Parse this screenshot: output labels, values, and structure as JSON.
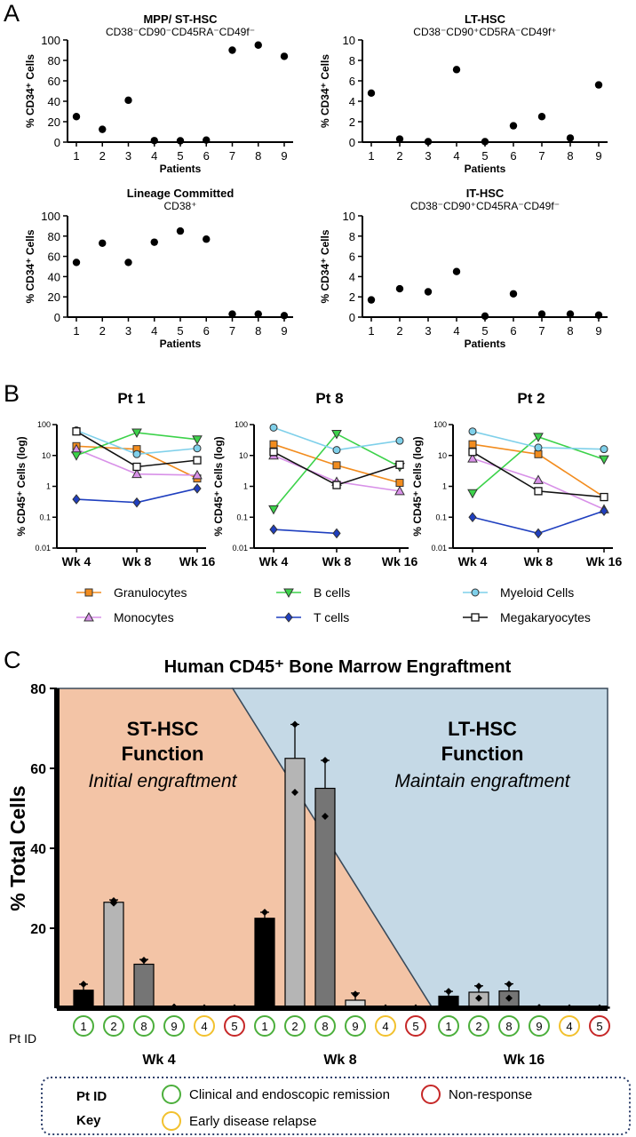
{
  "panel_letters": [
    "A",
    "B",
    "C"
  ],
  "chart_data": [
    {
      "type": "scatter",
      "panel": "A",
      "title": "MPP/ ST-HSC",
      "subtitle": "CD38⁻CD90⁻CD45RA⁻CD49f⁻",
      "xlabel": "Patients",
      "ylabel": "% CD34⁺ Cells",
      "x": [
        1,
        2,
        3,
        4,
        5,
        6,
        7,
        8,
        9
      ],
      "y": [
        25,
        12.5,
        41,
        1.5,
        1.3,
        2,
        90,
        95,
        84
      ],
      "ylim": [
        0,
        100
      ],
      "yticks": [
        0,
        20,
        40,
        60,
        80,
        100
      ]
    },
    {
      "type": "scatter",
      "panel": "A",
      "title": "LT-HSC",
      "subtitle": "CD38⁻CD90⁺CD5RA⁻CD49f⁺",
      "xlabel": "Patients",
      "ylabel": "% CD34⁺ Cells",
      "x": [
        1,
        2,
        3,
        4,
        5,
        6,
        7,
        8,
        9
      ],
      "y": [
        4.8,
        0.3,
        0.05,
        7.1,
        0.05,
        1.6,
        2.5,
        0.4,
        5.6
      ],
      "ylim": [
        0,
        10
      ],
      "yticks": [
        0,
        2,
        4,
        6,
        8,
        10
      ]
    },
    {
      "type": "scatter",
      "panel": "A",
      "title": "Lineage Committed",
      "subtitle": "CD38⁺",
      "xlabel": "Patients",
      "ylabel": "% CD34⁺ Cells",
      "x": [
        1,
        2,
        3,
        4,
        5,
        6,
        7,
        8,
        9
      ],
      "y": [
        54,
        73,
        54,
        74,
        85,
        77,
        3,
        3,
        1.5
      ],
      "ylim": [
        0,
        100
      ],
      "yticks": [
        0,
        20,
        40,
        60,
        80,
        100
      ]
    },
    {
      "type": "scatter",
      "panel": "A",
      "title": "IT-HSC",
      "subtitle": "CD38⁻CD90⁺CD45RA⁻CD49f⁻",
      "xlabel": "Patients",
      "ylabel": "% CD34⁺ Cells",
      "x": [
        1,
        2,
        3,
        4,
        5,
        6,
        7,
        8,
        9
      ],
      "y": [
        1.7,
        2.8,
        2.5,
        4.5,
        0.1,
        2.3,
        0.3,
        0.3,
        0.2
      ],
      "ylim": [
        0,
        10
      ],
      "yticks": [
        0,
        2,
        4,
        6,
        8,
        10
      ]
    },
    {
      "type": "line",
      "panel": "B",
      "title": "Pt 1",
      "ylabel": "% CD45⁺ Cells (log)",
      "yscale": "log",
      "ylim": [
        0.01,
        100
      ],
      "yticks": [
        "100",
        "10",
        "1",
        "0.1",
        "0.01"
      ],
      "categories": [
        "Wk 4",
        "Wk 8",
        "Wk 16"
      ],
      "series": [
        {
          "name": "Granulocytes",
          "values": [
            20,
            16,
            1.8
          ]
        },
        {
          "name": "Monocytes",
          "values": [
            16,
            2.5,
            2.3
          ]
        },
        {
          "name": "B cells",
          "values": [
            10,
            55,
            33
          ]
        },
        {
          "name": "T cells",
          "values": [
            0.38,
            0.3,
            0.85
          ]
        },
        {
          "name": "Myeloid Cells",
          "values": [
            65,
            11,
            17
          ]
        },
        {
          "name": "Megakaryocytes",
          "values": [
            60,
            4.3,
            7
          ]
        }
      ]
    },
    {
      "type": "line",
      "panel": "B",
      "title": "Pt 8",
      "ylabel": "% CD45⁺ Cells (log)",
      "yscale": "log",
      "ylim": [
        0.01,
        100
      ],
      "yticks": [
        "100",
        "10",
        "1",
        "0.1",
        "0.01"
      ],
      "categories": [
        "Wk 4",
        "Wk 8",
        "Wk 16"
      ],
      "series": [
        {
          "name": "Granulocytes",
          "values": [
            23,
            4.8,
            1.3
          ]
        },
        {
          "name": "Monocytes",
          "values": [
            10,
            1.4,
            0.7
          ]
        },
        {
          "name": "B cells",
          "values": [
            0.18,
            50,
            4.3
          ]
        },
        {
          "name": "T cells",
          "values": [
            0.04,
            0.03,
            null
          ]
        },
        {
          "name": "Myeloid Cells",
          "values": [
            80,
            15,
            30
          ]
        },
        {
          "name": "Megakaryocytes",
          "values": [
            13,
            1.1,
            5
          ]
        }
      ]
    },
    {
      "type": "line",
      "panel": "B",
      "title": "Pt 2",
      "ylabel": "% CD45⁺ Cells (log)",
      "yscale": "log",
      "ylim": [
        0.01,
        100
      ],
      "yticks": [
        "100",
        "10",
        "1",
        "0.1",
        "0.01"
      ],
      "categories": [
        "Wk 4",
        "Wk 8",
        "Wk 16"
      ],
      "series": [
        {
          "name": "Granulocytes",
          "values": [
            23,
            11,
            0.45
          ]
        },
        {
          "name": "Monocytes",
          "values": [
            8,
            1.6,
            0.18
          ]
        },
        {
          "name": "B cells",
          "values": [
            0.6,
            40,
            7.5
          ]
        },
        {
          "name": "T cells",
          "values": [
            0.1,
            0.03,
            0.16
          ]
        },
        {
          "name": "Myeloid Cells",
          "values": [
            60,
            18,
            16
          ]
        },
        {
          "name": "Megakaryocytes",
          "values": [
            13,
            0.7,
            0.45
          ]
        }
      ]
    },
    {
      "type": "bar",
      "panel": "C",
      "title": "Human CD45⁺ Bone Marrow Engraftment",
      "ylabel": "% Total Cells",
      "ylim": [
        0,
        80
      ],
      "yticks": [
        20,
        40,
        60,
        80
      ],
      "x_axis_prefix": "Pt ID",
      "groups": [
        {
          "label": "Wk 4",
          "bars": [
            {
              "pt": "1",
              "value": 4.5,
              "err": 1.5,
              "points": [
                6
              ]
            },
            {
              "pt": "2",
              "value": 26.5,
              "err": 0.6,
              "points": [
                26.3,
                26.9
              ]
            },
            {
              "pt": "8",
              "value": 11,
              "err": 1.2,
              "points": [
                12
              ]
            },
            {
              "pt": "9",
              "value": 0.2,
              "points": [
                0.3
              ]
            },
            {
              "pt": "4",
              "value": 0.1,
              "points": [
                0.1
              ]
            },
            {
              "pt": "5",
              "value": 0.1,
              "points": [
                0.1
              ]
            }
          ]
        },
        {
          "label": "Wk 8",
          "bars": [
            {
              "pt": "1",
              "value": 22.5,
              "err": 1.5,
              "points": [
                24
              ]
            },
            {
              "pt": "2",
              "value": 62.5,
              "err": 8.5,
              "points": [
                71,
                54
              ]
            },
            {
              "pt": "8",
              "value": 55,
              "err": 7,
              "points": [
                62,
                48
              ]
            },
            {
              "pt": "9",
              "value": 2,
              "err": 1.8,
              "points": [
                3.5
              ]
            },
            {
              "pt": "4",
              "value": 0.1,
              "points": [
                0.1
              ]
            },
            {
              "pt": "5",
              "value": 0.1,
              "points": [
                0.1
              ]
            }
          ]
        },
        {
          "label": "Wk 16",
          "bars": [
            {
              "pt": "1",
              "value": 3,
              "err": 1.2,
              "points": [
                4.2
              ]
            },
            {
              "pt": "2",
              "value": 4,
              "err": 1.6,
              "points": [
                5.5,
                2.5
              ]
            },
            {
              "pt": "8",
              "value": 4.3,
              "err": 1.8,
              "points": [
                6,
                2.5
              ]
            },
            {
              "pt": "9",
              "value": 0.2,
              "points": [
                0.2
              ]
            },
            {
              "pt": "4",
              "value": 0.1,
              "points": [
                0.1
              ]
            },
            {
              "pt": "5",
              "value": 0.1,
              "points": [
                0.1
              ]
            }
          ]
        }
      ],
      "annotations": {
        "st_title_line1": "ST-HSC",
        "st_title_line2": "Function",
        "st_subtitle": "Initial engraftment",
        "lt_title_line1": "LT-HSC",
        "lt_title_line2": "Function",
        "lt_subtitle": "Maintain engraftment"
      }
    }
  ],
  "legend_B": [
    {
      "name": "Granulocytes",
      "color": "#f28c1e",
      "marker": "square"
    },
    {
      "name": "Monocytes",
      "color": "#d891e8",
      "marker": "triangle-up"
    },
    {
      "name": "B cells",
      "color": "#3cd24a",
      "marker": "triangle-down"
    },
    {
      "name": "T cells",
      "color": "#1f3fbf",
      "marker": "diamond"
    },
    {
      "name": "Myeloid Cells",
      "color": "#7fd0ea",
      "marker": "circle"
    },
    {
      "name": "Megakaryocytes",
      "color": "#111111",
      "marker": "square-open"
    }
  ],
  "pt_id_key": {
    "title_line1": "Pt ID",
    "title_line2": "Key",
    "entries": [
      {
        "label": "Clinical and endoscopic remission",
        "color": "#4caf3c"
      },
      {
        "label": "Non-response",
        "color": "#c62828"
      },
      {
        "label": "Early disease relapse",
        "color": "#f2c12e"
      }
    ]
  },
  "pt_status_colors": {
    "1": "#4caf3c",
    "2": "#4caf3c",
    "8": "#4caf3c",
    "9": "#4caf3c",
    "4": "#f2c12e",
    "5": "#c62828"
  },
  "bar_colors": {
    "1": "#000000",
    "2": "#b5b5b5",
    "8": "#757575",
    "9": "#d8d8d8",
    "4": "#d8d8d8",
    "5": "#d8d8d8"
  },
  "region_colors": {
    "st": "#f3c4a6",
    "lt": "#c5d9e6"
  }
}
